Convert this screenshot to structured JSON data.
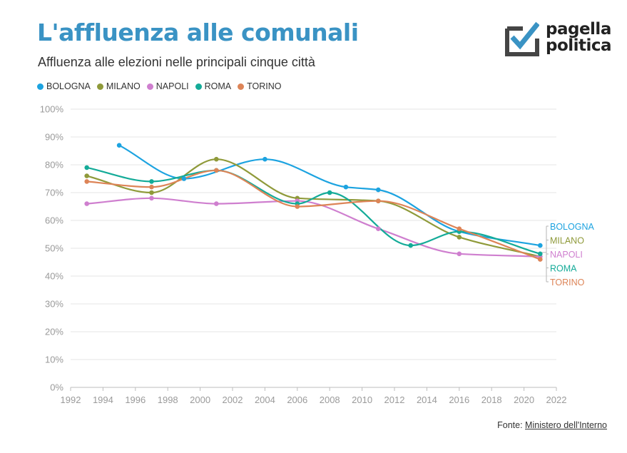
{
  "header": {
    "title": "L'affluenza alle comunali",
    "subtitle": "Affluenza alle elezioni nelle principali cinque città"
  },
  "logo": {
    "line1": "pagella",
    "line2": "politica"
  },
  "source": {
    "label": "Fonte:",
    "link_text": "Ministero dell'Interno"
  },
  "chart_data": {
    "type": "line",
    "x_ticks": [
      "1992",
      "1994",
      "1996",
      "1998",
      "2000",
      "2002",
      "2004",
      "2006",
      "2008",
      "2010",
      "2012",
      "2014",
      "2016",
      "2018",
      "2020",
      "2022"
    ],
    "y_ticks": [
      "0%",
      "10%",
      "20%",
      "30%",
      "40%",
      "50%",
      "60%",
      "70%",
      "80%",
      "90%",
      "100%"
    ],
    "xlim": [
      1992,
      2022
    ],
    "ylim": [
      0,
      100
    ],
    "grid": "horizontal",
    "legend": "top-left",
    "series": [
      {
        "name": "BOLOGNA",
        "color": "#1ca3e0",
        "x": [
          1995,
          1999,
          2004,
          2009,
          2011,
          2016,
          2021
        ],
        "y": [
          87,
          75,
          82,
          72,
          71,
          56,
          51
        ]
      },
      {
        "name": "MILANO",
        "color": "#8f9a3a",
        "x": [
          1993,
          1997,
          2001,
          2006,
          2011,
          2016,
          2021
        ],
        "y": [
          76,
          70,
          82,
          68,
          67,
          54,
          47
        ]
      },
      {
        "name": "NAPOLI",
        "color": "#cf7fcf",
        "x": [
          1993,
          1997,
          2001,
          2006,
          2011,
          2016,
          2021
        ],
        "y": [
          66,
          68,
          66,
          67,
          57,
          48,
          47
        ]
      },
      {
        "name": "ROMA",
        "color": "#14ab98",
        "x": [
          1993,
          1997,
          2001,
          2006,
          2008,
          2013,
          2016,
          2021
        ],
        "y": [
          79,
          74,
          78,
          66,
          70,
          51,
          56,
          48
        ]
      },
      {
        "name": "TORINO",
        "color": "#dd8457",
        "x": [
          1993,
          1997,
          2001,
          2006,
          2011,
          2016,
          2021
        ],
        "y": [
          74,
          72,
          78,
          65,
          67,
          57,
          46
        ]
      }
    ]
  }
}
